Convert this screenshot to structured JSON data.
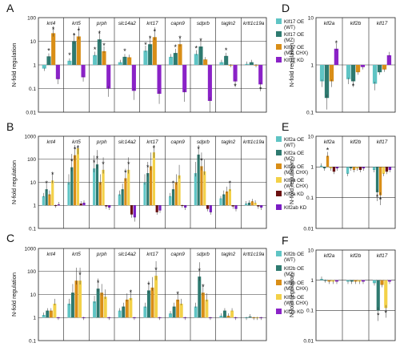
{
  "colors": {
    "OE_WT": "#5fc4c4",
    "OE_MZ": "#2e7a70",
    "OE_MZ_CHX": "#d98e17",
    "OE_WT_CHX": "#f3d148",
    "KD": "#8a22c7",
    "KD_dark": "#6b1010",
    "KDab": "#7a1cc4"
  },
  "chart_data": [
    {
      "panel": "A",
      "type": "bar",
      "log": true,
      "ylim": [
        0.01,
        100
      ],
      "ylabel": "N-fold regulation",
      "yticks": [
        "100",
        "10",
        "1",
        "0.1",
        "0.01"
      ],
      "categories": [
        "krt4",
        "krt5",
        "prph",
        "slc14a2",
        "krt17",
        "capn9",
        "sdprb",
        "tagln2",
        "krtt1c19a"
      ],
      "series": [
        {
          "name": "Klf17 OE (WT)",
          "color": "OE_WT",
          "values": [
            0.7,
            1.5,
            2.6,
            1.3,
            4.0,
            2.2,
            2.9,
            1.3,
            1.1
          ]
        },
        {
          "name": "Klf17 OE (MZ)",
          "color": "OE_MZ",
          "values": [
            2.3,
            10,
            12,
            2.2,
            7.5,
            3.2,
            6.0,
            2.4,
            1.3
          ]
        },
        {
          "name": "Klf17 OE (MZ, CHX)",
          "color": "OE_MZ_CHX",
          "values": [
            22,
            16,
            3.8,
            2.1,
            15,
            7.5,
            1.7,
            1.0,
            1.0
          ]
        },
        {
          "name": "Klf17 KD",
          "color": "KD",
          "values": [
            0.25,
            0.3,
            0.1,
            0.08,
            0.06,
            0.07,
            0.03,
            0.2,
            0.15
          ]
        }
      ]
    },
    {
      "panel": "B",
      "type": "bar",
      "log": true,
      "ylim": [
        0.1,
        1000
      ],
      "ylabel": "N-fold regulation",
      "yticks": [
        "1000",
        "100",
        "10",
        "1",
        "0.1"
      ],
      "categories": [
        "krt4",
        "krt5",
        "prph",
        "slc14a2",
        "krt17",
        "capn9",
        "sdprb",
        "tagln2",
        "krtt1c19a"
      ],
      "series": [
        {
          "name": "Klf2a OE (WT)",
          "color": "OE_WT",
          "values": [
            2.5,
            10,
            40,
            3,
            10,
            2.5,
            25,
            2,
            1.2
          ]
        },
        {
          "name": "Klf2a OE (MZ)",
          "color": "OE_MZ",
          "values": [
            5,
            45,
            60,
            5,
            25,
            5,
            160,
            3,
            1.3
          ]
        },
        {
          "name": "Klf2a OE (MZ, CHX)",
          "color": "OE_MZ_CHX",
          "values": [
            3,
            150,
            10,
            15,
            50,
            10,
            50,
            4,
            1.5
          ]
        },
        {
          "name": "Klf2a OE (WT, CHX)",
          "color": "OE_WT_CHX",
          "values": [
            12,
            300,
            35,
            35,
            200,
            20,
            30,
            5,
            1.3
          ]
        },
        {
          "name": "Klf2a KD",
          "color": "KD_dark",
          "values": [
            1,
            1.2,
            0.9,
            0.4,
            0.5,
            1,
            0.7,
            0.9,
            0.9
          ]
        },
        {
          "name": "Klf2ab KD",
          "color": "KDab",
          "values": [
            1.1,
            1.3,
            0.8,
            0.3,
            0.6,
            0.8,
            0.5,
            0.7,
            0.8
          ]
        }
      ]
    },
    {
      "panel": "C",
      "type": "bar",
      "log": true,
      "ylim": [
        0.1,
        1000
      ],
      "ylabel": "N-fold regulation",
      "yticks": [
        "1000",
        "100",
        "10",
        "1",
        "0.1"
      ],
      "categories": [
        "krt4",
        "krt5",
        "prph",
        "slc14a2",
        "krt17",
        "capn9",
        "sdprb",
        "tagln2",
        "krtt1c19a"
      ],
      "series": [
        {
          "name": "Klf2b OE (WT)",
          "color": "OE_WT",
          "values": [
            1.3,
            4,
            5,
            2,
            3,
            1.5,
            3,
            1.2,
            1
          ]
        },
        {
          "name": "Klf2b OE (MZ)",
          "color": "OE_MZ",
          "values": [
            2,
            12,
            18,
            3,
            15,
            3,
            60,
            2,
            1.1
          ]
        },
        {
          "name": "Klf2b OE (MZ, CHX)",
          "color": "OE_MZ_CHX",
          "values": [
            2,
            40,
            12,
            6,
            20,
            6,
            12,
            1.2,
            1
          ]
        },
        {
          "name": "Klf2b OE (WT, CHX)",
          "color": "OE_WT_CHX",
          "values": [
            4,
            40,
            8,
            7,
            65,
            4,
            6,
            2,
            1
          ]
        },
        {
          "name": "Klf2b KD",
          "color": "KD",
          "values": [
            1,
            1,
            1,
            1,
            1,
            1,
            1,
            1,
            1
          ]
        }
      ]
    },
    {
      "panel": "D",
      "type": "bar",
      "log": true,
      "ylim": [
        0.1,
        10
      ],
      "ylabel": "N-fold regulation",
      "yticks": [
        "10",
        "1",
        "0.1"
      ],
      "categories": [
        "klf2a",
        "klf2b",
        "klf17"
      ],
      "series": [
        {
          "name": "OE (WT)",
          "color": "OE_WT",
          "values": [
            0.45,
            0.5,
            0.4
          ]
        },
        {
          "name": "OE (MZ)",
          "color": "OE_MZ",
          "values": [
            0.2,
            0.45,
            0.7
          ]
        },
        {
          "name": "OE (MZ, CHX)",
          "color": "OE_MZ_CHX",
          "values": [
            0.45,
            0.7,
            0.8
          ]
        },
        {
          "name": "KD",
          "color": "KD",
          "values": [
            2.2,
            0.9,
            1.6
          ]
        }
      ]
    },
    {
      "panel": "E",
      "type": "bar",
      "log": true,
      "ylim": [
        0.01,
        10
      ],
      "ylabel": "N-fold regulation",
      "yticks": [
        "10",
        "1",
        "0.1",
        "0.01"
      ],
      "categories": [
        "klf2a",
        "klf2b",
        "klf17"
      ],
      "series": [
        {
          "name": "OE (WT)",
          "color": "OE_WT",
          "values": [
            1.1,
            0.6,
            0.8
          ]
        },
        {
          "name": "OE (MZ)",
          "color": "OE_MZ",
          "values": [
            0.9,
            0.9,
            0.15
          ]
        },
        {
          "name": "OE (MZ, CHX)",
          "color": "OE_MZ_CHX",
          "values": [
            2.3,
            0.8,
            0.12
          ]
        },
        {
          "name": "OE (WT, CHX)",
          "color": "OE_WT_CHX",
          "values": [
            0.9,
            0.9,
            0.6
          ]
        },
        {
          "name": "Klf2a KD",
          "color": "KD_dark",
          "values": [
            0.7,
            0.8,
            0.7
          ]
        },
        {
          "name": "Klf2ab KD",
          "color": "KDab",
          "values": [
            0.9,
            0.9,
            0.8
          ]
        }
      ]
    },
    {
      "panel": "F",
      "type": "bar",
      "log": true,
      "ylim": [
        0.01,
        10
      ],
      "ylabel": "N-fold regulation",
      "yticks": [
        "10",
        "1",
        "0.1",
        "0.01"
      ],
      "categories": [
        "klf2a",
        "klf2b",
        "klf17"
      ],
      "series": [
        {
          "name": "OE (WT)",
          "color": "OE_WT",
          "values": [
            1.1,
            0.9,
            0.8
          ]
        },
        {
          "name": "OE (MZ)",
          "color": "OE_MZ",
          "values": [
            1.0,
            0.9,
            0.1
          ]
        },
        {
          "name": "OE (MZ, CHX)",
          "color": "OE_MZ_CHX",
          "values": [
            0.9,
            0.9,
            0.7
          ]
        },
        {
          "name": "OE (WT, CHX)",
          "color": "OE_WT_CHX",
          "values": [
            0.9,
            0.9,
            0.12
          ]
        },
        {
          "name": "KD",
          "color": "KD",
          "values": [
            0.9,
            0.9,
            0.9
          ]
        }
      ]
    }
  ]
}
